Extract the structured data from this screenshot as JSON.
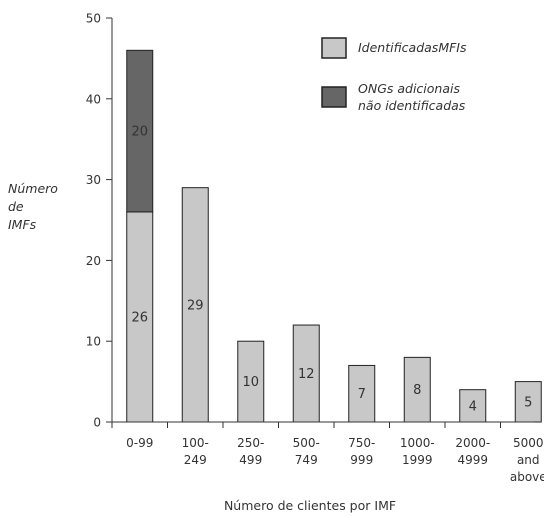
{
  "chart_data": {
    "type": "bar",
    "stacked": true,
    "categories": [
      [
        "0-99"
      ],
      [
        "100-",
        "249"
      ],
      [
        "250-",
        "499"
      ],
      [
        "500-",
        "749"
      ],
      [
        "750-",
        "999"
      ],
      [
        "1000-",
        "1999"
      ],
      [
        "2000-",
        "4999"
      ],
      [
        "5000",
        "and",
        "above"
      ]
    ],
    "series": [
      {
        "name": "IdentificadasMFIs",
        "color": "#c8c8c8",
        "values": [
          26,
          29,
          10,
          12,
          7,
          8,
          4,
          5
        ],
        "labels": [
          "26",
          "29",
          "10",
          "12",
          "7",
          "8",
          "4",
          "5"
        ]
      },
      {
        "name": "ONGs adicionais não identificadas",
        "color": "#666666",
        "values": [
          20,
          0,
          0,
          0,
          0,
          0,
          0,
          0
        ],
        "labels": [
          "20",
          "",
          "",
          "",
          "",
          "",
          "",
          ""
        ]
      }
    ],
    "legend": {
      "placement": "top-right",
      "entries": [
        [
          "IdentificadasMFIs"
        ],
        [
          "ONGs adicionais",
          "não identificadas"
        ]
      ]
    },
    "ylabel": [
      "Número",
      "de",
      "IMFs"
    ],
    "xlabel": "Número de clientes por IMF",
    "ylim": [
      0,
      50
    ],
    "yticks": [
      0,
      10,
      20,
      30,
      40,
      50
    ],
    "grid": false
  }
}
